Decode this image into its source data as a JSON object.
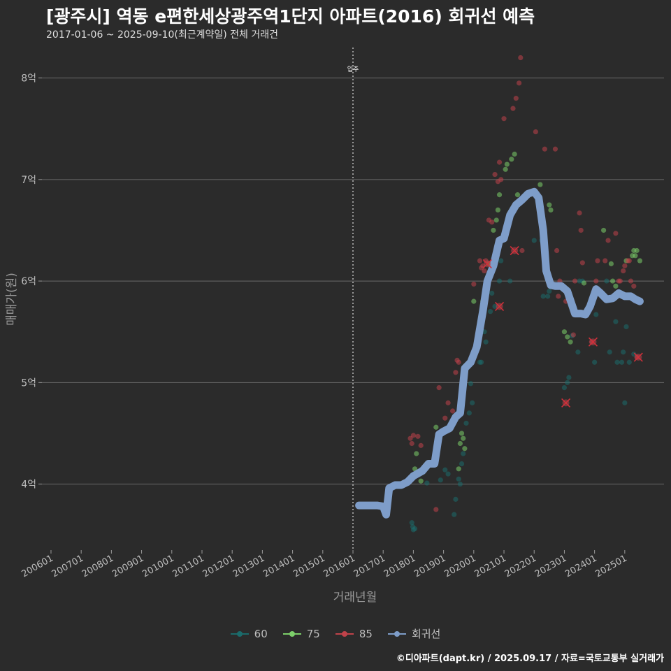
{
  "header": {
    "title": "[광주시] 역동 e편한세상광주역1단지 아파트(2016) 회귀선 예측",
    "subtitle": "2017-01-06 ~ 2025-09-10(최근계약일) 전체 거래건"
  },
  "footer": {
    "credit": "©디아파트(dapt.kr) / 2025.09.17 / 자료=국토교통부 실거래가"
  },
  "chart_data": {
    "type": "scatter",
    "title": "[광주시] 역동 e편한세상광주역1단지 아파트(2016) 회귀선 예측",
    "xlabel": "거래년월",
    "ylabel": "매매가(원)",
    "xlim": [
      2005.7,
      2026.3
    ],
    "ylim": [
      3.35,
      8.3
    ],
    "x_ticks": [
      {
        "value": 2006.0,
        "label": "200601"
      },
      {
        "value": 2007.0,
        "label": "200701"
      },
      {
        "value": 2008.0,
        "label": "200801"
      },
      {
        "value": 2009.0,
        "label": "200901"
      },
      {
        "value": 2010.0,
        "label": "201001"
      },
      {
        "value": 2011.0,
        "label": "201101"
      },
      {
        "value": 2012.0,
        "label": "201201"
      },
      {
        "value": 2013.0,
        "label": "201301"
      },
      {
        "value": 2014.0,
        "label": "201401"
      },
      {
        "value": 2015.0,
        "label": "201501"
      },
      {
        "value": 2016.0,
        "label": "201601"
      },
      {
        "value": 2017.0,
        "label": "201701"
      },
      {
        "value": 2018.0,
        "label": "201801"
      },
      {
        "value": 2019.0,
        "label": "201901"
      },
      {
        "value": 2020.0,
        "label": "202001"
      },
      {
        "value": 2021.0,
        "label": "202101"
      },
      {
        "value": 2022.0,
        "label": "202201"
      },
      {
        "value": 2023.0,
        "label": "202301"
      },
      {
        "value": 2024.0,
        "label": "202401"
      },
      {
        "value": 2025.0,
        "label": "202501"
      }
    ],
    "y_ticks": [
      {
        "value": 4,
        "label": "4억"
      },
      {
        "value": 5,
        "label": "5억"
      },
      {
        "value": 6,
        "label": "6억"
      },
      {
        "value": 7,
        "label": "7억"
      },
      {
        "value": 8,
        "label": "8억"
      }
    ],
    "annotation": {
      "x": 2016.0,
      "label": "입주"
    },
    "legend": [
      {
        "name": "60",
        "color": "#1b6b6b"
      },
      {
        "name": "75",
        "color": "#7ccf6a"
      },
      {
        "name": "85",
        "color": "#c0424a"
      },
      {
        "name": "회귀선",
        "color": "#7e9dc9"
      }
    ],
    "series": [
      {
        "name": "60",
        "color": "#1b6b6b",
        "points": [
          [
            2017.95,
            3.62
          ],
          [
            2017.98,
            3.58
          ],
          [
            2018.0,
            3.55
          ],
          [
            2018.05,
            3.56
          ],
          [
            2018.45,
            4.01
          ],
          [
            2018.9,
            4.04
          ],
          [
            2019.05,
            4.14
          ],
          [
            2019.15,
            4.1
          ],
          [
            2019.35,
            3.7
          ],
          [
            2019.4,
            3.85
          ],
          [
            2019.5,
            4.05
          ],
          [
            2019.55,
            4.0
          ],
          [
            2019.6,
            4.2
          ],
          [
            2019.65,
            4.3
          ],
          [
            2019.75,
            4.6
          ],
          [
            2019.85,
            4.7
          ],
          [
            2019.9,
            4.99
          ],
          [
            2019.95,
            4.8
          ],
          [
            2020.2,
            5.2
          ],
          [
            2020.25,
            5.2
          ],
          [
            2020.35,
            5.5
          ],
          [
            2020.4,
            5.4
          ],
          [
            2020.55,
            5.7
          ],
          [
            2020.6,
            5.88
          ],
          [
            2020.7,
            5.75
          ],
          [
            2020.85,
            6.0
          ],
          [
            2020.9,
            6.2
          ],
          [
            2021.2,
            6.0
          ],
          [
            2022.0,
            6.4
          ],
          [
            2022.25,
            6.4
          ],
          [
            2022.3,
            5.85
          ],
          [
            2022.45,
            5.85
          ],
          [
            2022.5,
            5.9
          ],
          [
            2023.0,
            4.95
          ],
          [
            2023.1,
            5.0
          ],
          [
            2023.15,
            5.05
          ],
          [
            2023.25,
            5.46
          ],
          [
            2023.45,
            5.3
          ],
          [
            2023.5,
            6.0
          ],
          [
            2023.6,
            6.0
          ],
          [
            2024.0,
            5.2
          ],
          [
            2024.05,
            5.67
          ],
          [
            2024.4,
            6.0
          ],
          [
            2024.5,
            5.3
          ],
          [
            2024.7,
            5.6
          ],
          [
            2024.75,
            5.2
          ],
          [
            2024.9,
            5.2
          ],
          [
            2024.95,
            5.3
          ],
          [
            2025.0,
            4.8
          ],
          [
            2025.05,
            5.55
          ],
          [
            2025.15,
            5.2
          ],
          [
            2025.3,
            5.28
          ]
        ]
      },
      {
        "name": "75",
        "color": "#7ccf6a",
        "points": [
          [
            2018.05,
            4.15
          ],
          [
            2018.1,
            4.3
          ],
          [
            2018.25,
            4.03
          ],
          [
            2018.75,
            4.56
          ],
          [
            2019.5,
            4.15
          ],
          [
            2019.55,
            4.4
          ],
          [
            2019.6,
            4.5
          ],
          [
            2019.65,
            4.45
          ],
          [
            2019.7,
            4.35
          ],
          [
            2020.0,
            5.8
          ],
          [
            2020.3,
            5.8
          ],
          [
            2020.5,
            6.17
          ],
          [
            2020.65,
            6.5
          ],
          [
            2020.75,
            6.6
          ],
          [
            2020.8,
            6.7
          ],
          [
            2020.85,
            6.85
          ],
          [
            2021.05,
            7.1
          ],
          [
            2021.1,
            7.15
          ],
          [
            2021.25,
            7.2
          ],
          [
            2021.35,
            7.25
          ],
          [
            2021.45,
            6.85
          ],
          [
            2022.2,
            6.95
          ],
          [
            2022.5,
            6.75
          ],
          [
            2022.55,
            6.7
          ],
          [
            2023.0,
            5.5
          ],
          [
            2023.1,
            5.45
          ],
          [
            2023.2,
            5.4
          ],
          [
            2023.65,
            5.98
          ],
          [
            2024.3,
            6.5
          ],
          [
            2024.55,
            6.17
          ],
          [
            2024.6,
            6.0
          ],
          [
            2024.7,
            5.95
          ],
          [
            2024.9,
            5.88
          ],
          [
            2025.05,
            6.2
          ],
          [
            2025.25,
            6.25
          ],
          [
            2025.3,
            6.3
          ],
          [
            2025.35,
            6.25
          ],
          [
            2025.4,
            6.3
          ],
          [
            2025.5,
            6.2
          ]
        ]
      },
      {
        "name": "85",
        "color": "#c0424a",
        "points": [
          [
            2017.9,
            4.45
          ],
          [
            2017.95,
            4.4
          ],
          [
            2018.0,
            4.48
          ],
          [
            2018.15,
            4.47
          ],
          [
            2018.25,
            4.38
          ],
          [
            2018.75,
            3.75
          ],
          [
            2018.85,
            4.95
          ],
          [
            2019.05,
            4.65
          ],
          [
            2019.15,
            4.8
          ],
          [
            2019.3,
            4.72
          ],
          [
            2019.4,
            5.1
          ],
          [
            2019.45,
            5.22
          ],
          [
            2019.5,
            5.2
          ],
          [
            2020.0,
            5.97
          ],
          [
            2020.2,
            6.2
          ],
          [
            2020.25,
            6.13
          ],
          [
            2020.3,
            6.15
          ],
          [
            2020.35,
            6.1
          ],
          [
            2020.4,
            6.2
          ],
          [
            2020.5,
            6.6
          ],
          [
            2020.6,
            6.58
          ],
          [
            2020.7,
            7.05
          ],
          [
            2020.8,
            6.98
          ],
          [
            2020.85,
            7.17
          ],
          [
            2020.9,
            7.0
          ],
          [
            2021.0,
            7.6
          ],
          [
            2021.2,
            6.6
          ],
          [
            2021.3,
            7.7
          ],
          [
            2021.4,
            7.8
          ],
          [
            2021.5,
            7.95
          ],
          [
            2021.55,
            8.2
          ],
          [
            2021.6,
            6.3
          ],
          [
            2022.05,
            7.47
          ],
          [
            2022.35,
            7.3
          ],
          [
            2022.7,
            7.3
          ],
          [
            2022.75,
            6.3
          ],
          [
            2022.8,
            5.85
          ],
          [
            2022.85,
            6.0
          ],
          [
            2023.05,
            5.8
          ],
          [
            2023.3,
            5.47
          ],
          [
            2023.35,
            6.0
          ],
          [
            2023.5,
            6.67
          ],
          [
            2023.55,
            6.5
          ],
          [
            2023.6,
            6.18
          ],
          [
            2023.9,
            5.4
          ],
          [
            2024.05,
            6.0
          ],
          [
            2024.1,
            6.2
          ],
          [
            2024.35,
            6.2
          ],
          [
            2024.45,
            6.4
          ],
          [
            2024.7,
            6.47
          ],
          [
            2024.8,
            6.0
          ],
          [
            2024.85,
            6.0
          ],
          [
            2024.95,
            6.1
          ],
          [
            2025.0,
            6.15
          ],
          [
            2025.1,
            6.2
          ],
          [
            2025.15,
            6.2
          ],
          [
            2025.2,
            6.0
          ],
          [
            2025.3,
            5.95
          ],
          [
            2025.4,
            5.25
          ]
        ]
      },
      {
        "name": "85-cancelled",
        "color": "#c0424a",
        "marker": "x",
        "points": [
          [
            2020.45,
            6.17
          ],
          [
            2020.85,
            5.75
          ],
          [
            2021.35,
            6.3
          ],
          [
            2023.05,
            4.8
          ],
          [
            2023.95,
            5.4
          ],
          [
            2025.45,
            5.25
          ]
        ]
      },
      {
        "name": "회귀선",
        "color": "#7e9dc9",
        "type": "line",
        "points": [
          [
            2016.2,
            3.79
          ],
          [
            2016.8,
            3.79
          ],
          [
            2017.0,
            3.78
          ],
          [
            2017.1,
            3.7
          ],
          [
            2017.2,
            3.96
          ],
          [
            2017.4,
            3.99
          ],
          [
            2017.6,
            3.99
          ],
          [
            2017.8,
            4.02
          ],
          [
            2018.0,
            4.08
          ],
          [
            2018.3,
            4.13
          ],
          [
            2018.5,
            4.2
          ],
          [
            2018.7,
            4.2
          ],
          [
            2018.85,
            4.49
          ],
          [
            2019.0,
            4.52
          ],
          [
            2019.2,
            4.55
          ],
          [
            2019.4,
            4.66
          ],
          [
            2019.55,
            4.7
          ],
          [
            2019.7,
            5.14
          ],
          [
            2019.9,
            5.2
          ],
          [
            2020.1,
            5.35
          ],
          [
            2020.3,
            5.7
          ],
          [
            2020.45,
            6.0
          ],
          [
            2020.65,
            6.15
          ],
          [
            2020.85,
            6.4
          ],
          [
            2021.0,
            6.42
          ],
          [
            2021.2,
            6.65
          ],
          [
            2021.4,
            6.75
          ],
          [
            2021.6,
            6.8
          ],
          [
            2021.8,
            6.86
          ],
          [
            2022.0,
            6.88
          ],
          [
            2022.15,
            6.82
          ],
          [
            2022.3,
            6.5
          ],
          [
            2022.4,
            6.1
          ],
          [
            2022.55,
            5.96
          ],
          [
            2022.7,
            5.95
          ],
          [
            2022.9,
            5.95
          ],
          [
            2023.1,
            5.9
          ],
          [
            2023.35,
            5.68
          ],
          [
            2023.55,
            5.68
          ],
          [
            2023.7,
            5.67
          ],
          [
            2023.85,
            5.75
          ],
          [
            2024.05,
            5.92
          ],
          [
            2024.2,
            5.88
          ],
          [
            2024.4,
            5.82
          ],
          [
            2024.6,
            5.83
          ],
          [
            2024.8,
            5.88
          ],
          [
            2025.0,
            5.85
          ],
          [
            2025.2,
            5.85
          ],
          [
            2025.35,
            5.82
          ],
          [
            2025.5,
            5.8
          ]
        ]
      }
    ]
  }
}
